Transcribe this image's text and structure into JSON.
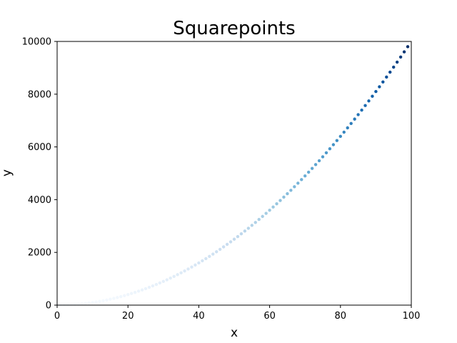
{
  "chart_data": {
    "type": "scatter",
    "title": "Squarepoints",
    "xlabel": "x",
    "ylabel": "y",
    "xlim": [
      0,
      100
    ],
    "ylim": [
      0,
      10000
    ],
    "xticks": [
      "0",
      "20",
      "40",
      "60",
      "80",
      "100"
    ],
    "yticks": [
      "0",
      "2000",
      "4000",
      "6000",
      "8000",
      "10000"
    ],
    "colormap": "Blues",
    "color_by": "y",
    "grid": false,
    "series": [
      {
        "x": [
          0,
          1,
          2,
          3,
          4,
          5,
          6,
          7,
          8,
          9,
          10,
          11,
          12,
          13,
          14,
          15,
          16,
          17,
          18,
          19,
          20,
          21,
          22,
          23,
          24,
          25,
          26,
          27,
          28,
          29,
          30,
          31,
          32,
          33,
          34,
          35,
          36,
          37,
          38,
          39,
          40,
          41,
          42,
          43,
          44,
          45,
          46,
          47,
          48,
          49,
          50,
          51,
          52,
          53,
          54,
          55,
          56,
          57,
          58,
          59,
          60,
          61,
          62,
          63,
          64,
          65,
          66,
          67,
          68,
          69,
          70,
          71,
          72,
          73,
          74,
          75,
          76,
          77,
          78,
          79,
          80,
          81,
          82,
          83,
          84,
          85,
          86,
          87,
          88,
          89,
          90,
          91,
          92,
          93,
          94,
          95,
          96,
          97,
          98,
          99
        ],
        "y": [
          0,
          1,
          4,
          9,
          16,
          25,
          36,
          49,
          64,
          81,
          100,
          121,
          144,
          169,
          196,
          225,
          256,
          289,
          324,
          361,
          400,
          441,
          484,
          529,
          576,
          625,
          676,
          729,
          784,
          841,
          900,
          961,
          1024,
          1089,
          1156,
          1225,
          1296,
          1369,
          1444,
          1521,
          1600,
          1681,
          1764,
          1849,
          1936,
          2025,
          2116,
          2209,
          2304,
          2401,
          2500,
          2601,
          2704,
          2809,
          2916,
          3025,
          3136,
          3249,
          3364,
          3481,
          3600,
          3721,
          3844,
          3969,
          4096,
          4225,
          4356,
          4489,
          4624,
          4761,
          4900,
          5041,
          5184,
          5329,
          5476,
          5625,
          5776,
          5929,
          6084,
          6241,
          6400,
          6561,
          6724,
          6889,
          7056,
          7225,
          7396,
          7569,
          7744,
          7921,
          8100,
          8281,
          8464,
          8649,
          8836,
          9025,
          9216,
          9409,
          9604,
          9801
        ]
      }
    ]
  }
}
